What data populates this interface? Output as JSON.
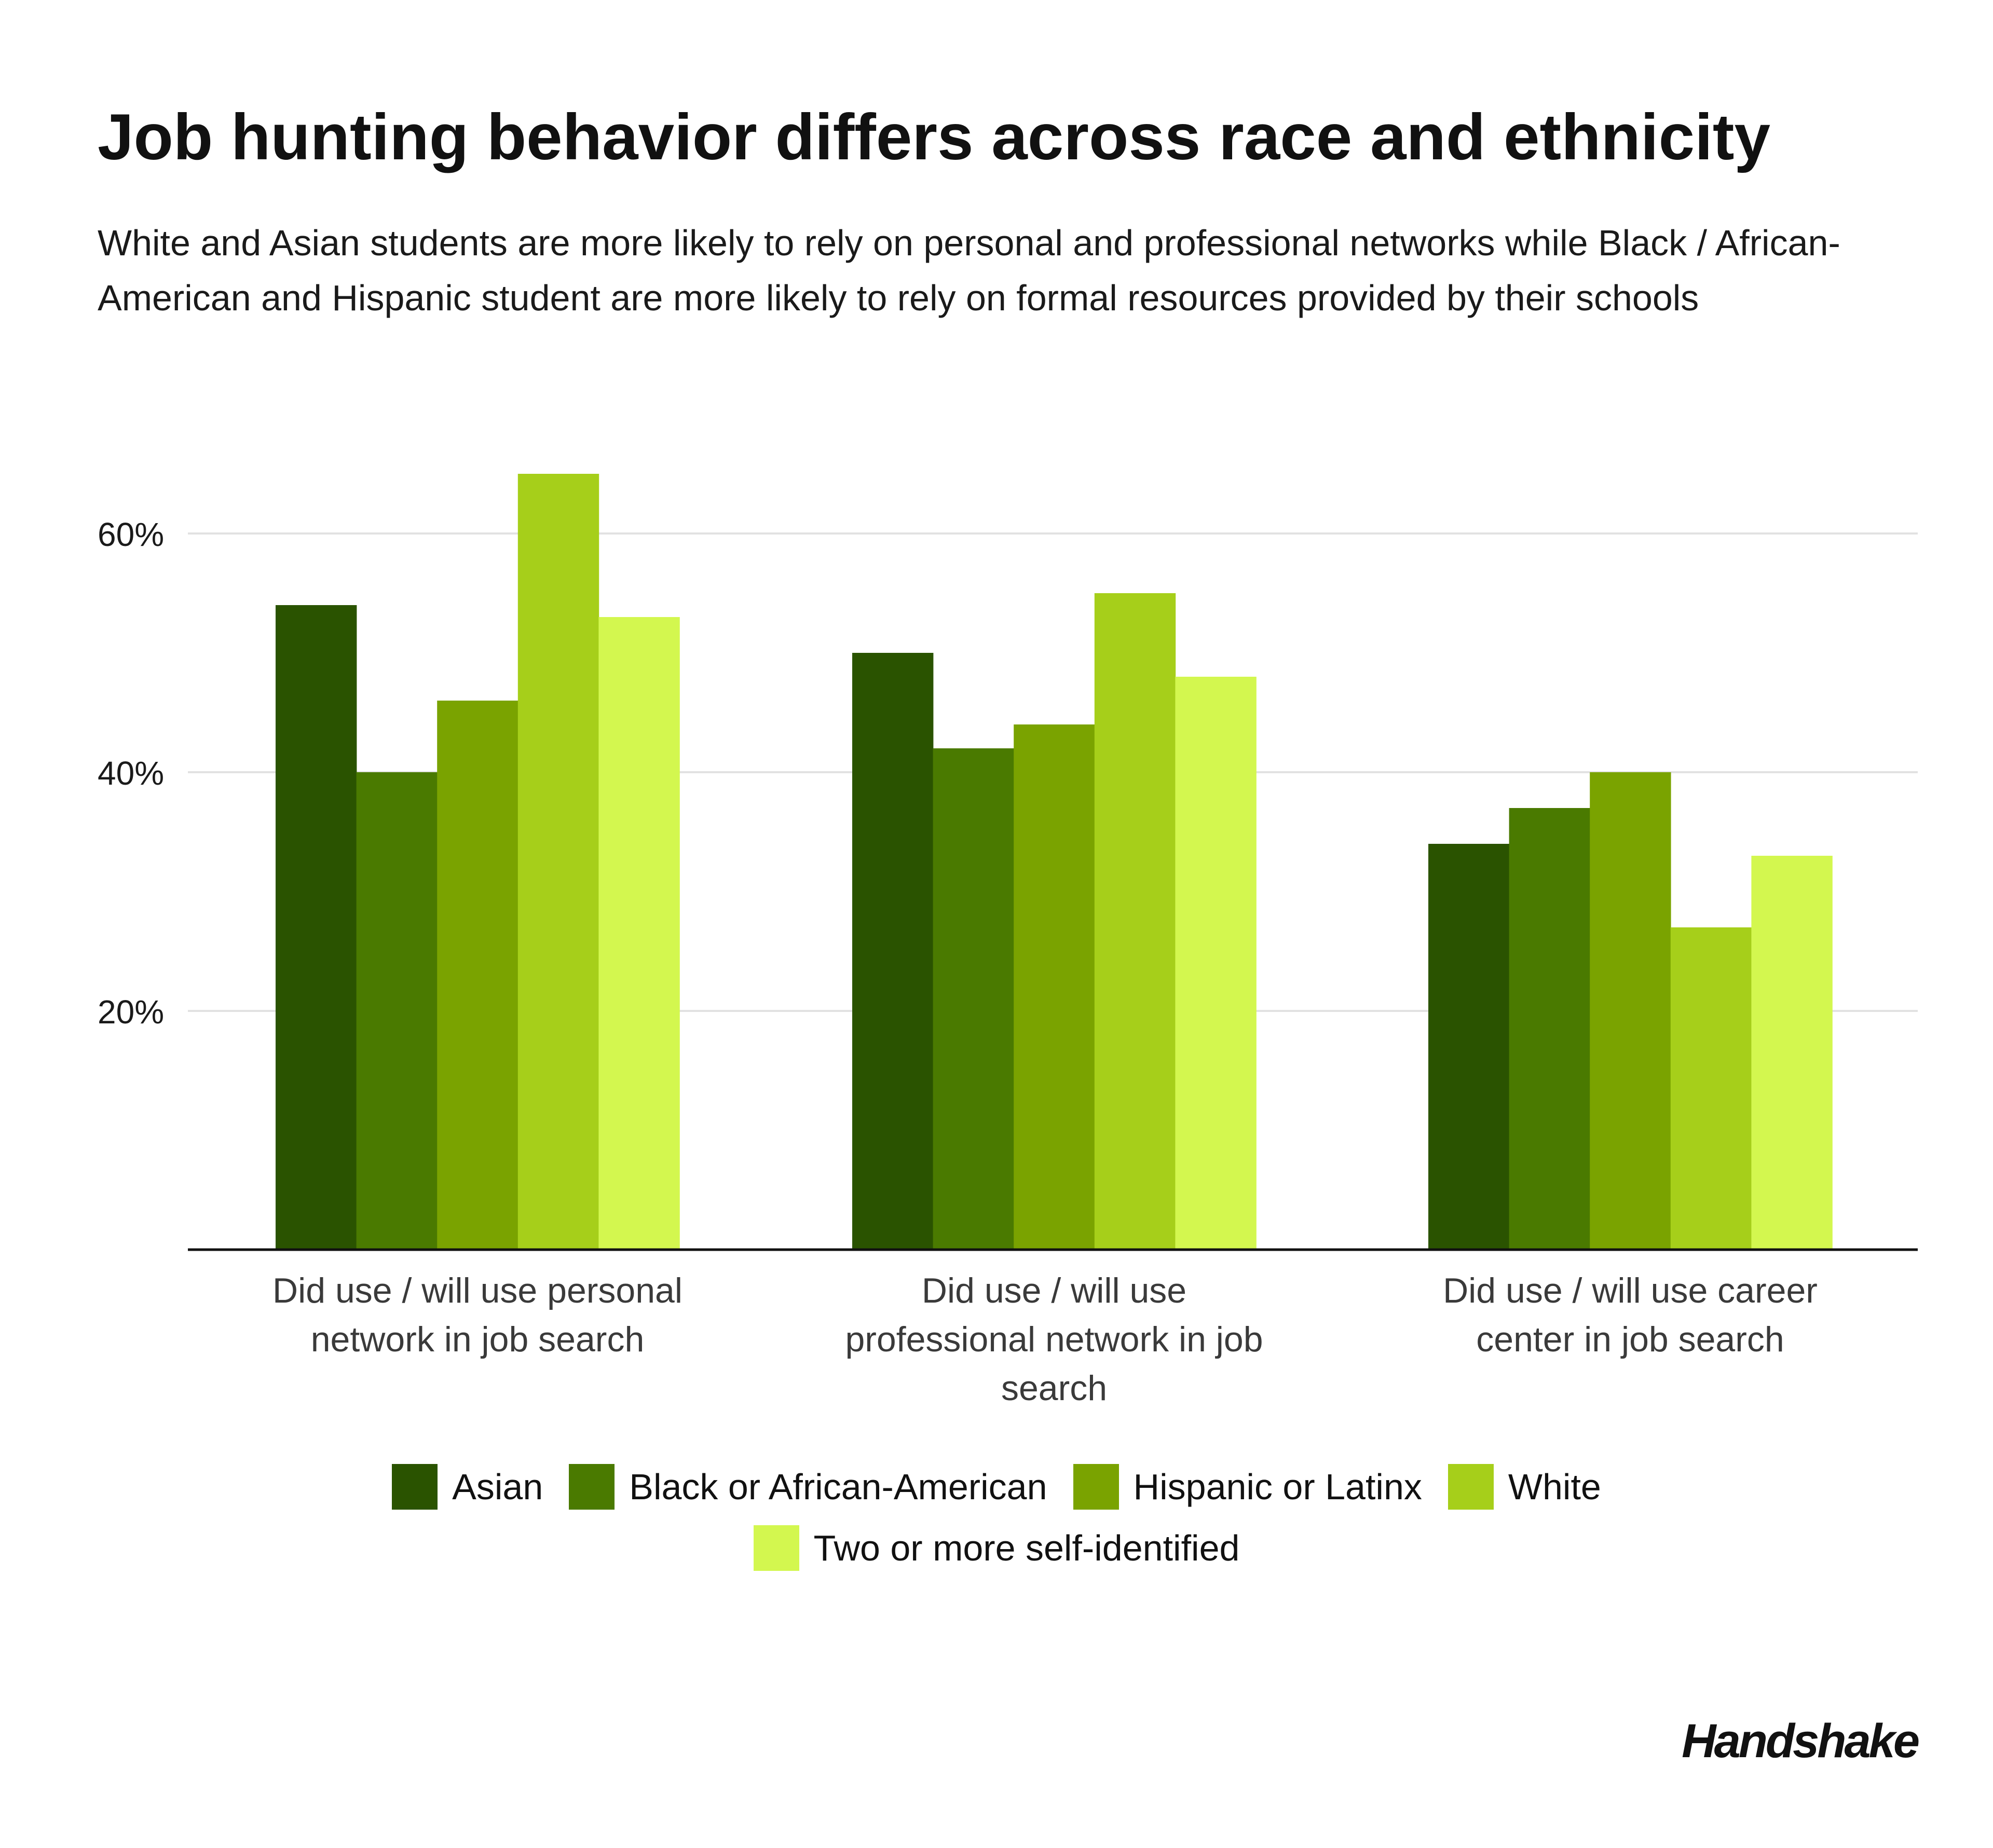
{
  "header": {
    "title": "Job hunting behavior differs across race and ethnicity",
    "subtitle": "White and Asian students are more likely to rely on personal and professional networks while Black / African-American and Hispanic student are more likely to rely on formal resources provided by their schools"
  },
  "brand": {
    "logo_text": "Handshake"
  },
  "chart_data": {
    "type": "bar",
    "title": "Job hunting behavior differs across race and ethnicity",
    "subtitle": "White and Asian students are more likely to rely on personal and professional networks while Black / African-American and Hispanic student are more likely to rely on formal resources provided by their schools",
    "categories": [
      "Did use / will use personal network in job search",
      "Did use / will use professional network in job search",
      "Did use / will use career center in job search"
    ],
    "category_lines": [
      [
        "Did use / will use personal",
        "network in job search"
      ],
      [
        "Did use / will use",
        "professional network in job",
        "search"
      ],
      [
        "Did use / will use career",
        "center in job search"
      ]
    ],
    "series": [
      {
        "name": "Asian",
        "color": "#2a5300",
        "values": [
          54,
          50,
          34
        ]
      },
      {
        "name": "Black or African-American",
        "color": "#4a7a00",
        "values": [
          40,
          42,
          37
        ]
      },
      {
        "name": "Hispanic or Latinx",
        "color": "#7aa300",
        "values": [
          46,
          44,
          40
        ]
      },
      {
        "name": "White",
        "color": "#a6cf1a",
        "values": [
          65,
          55,
          27
        ]
      },
      {
        "name": "Two or more self-identified",
        "color": "#d3f74f",
        "values": [
          53,
          48,
          33
        ]
      }
    ],
    "yticks": [
      20,
      40,
      60
    ],
    "ytick_labels": [
      "20%",
      "40%",
      "60%"
    ],
    "ylim": [
      0,
      70
    ],
    "xlabel": "",
    "ylabel": "",
    "grid": true,
    "legend": "bottom-center"
  }
}
